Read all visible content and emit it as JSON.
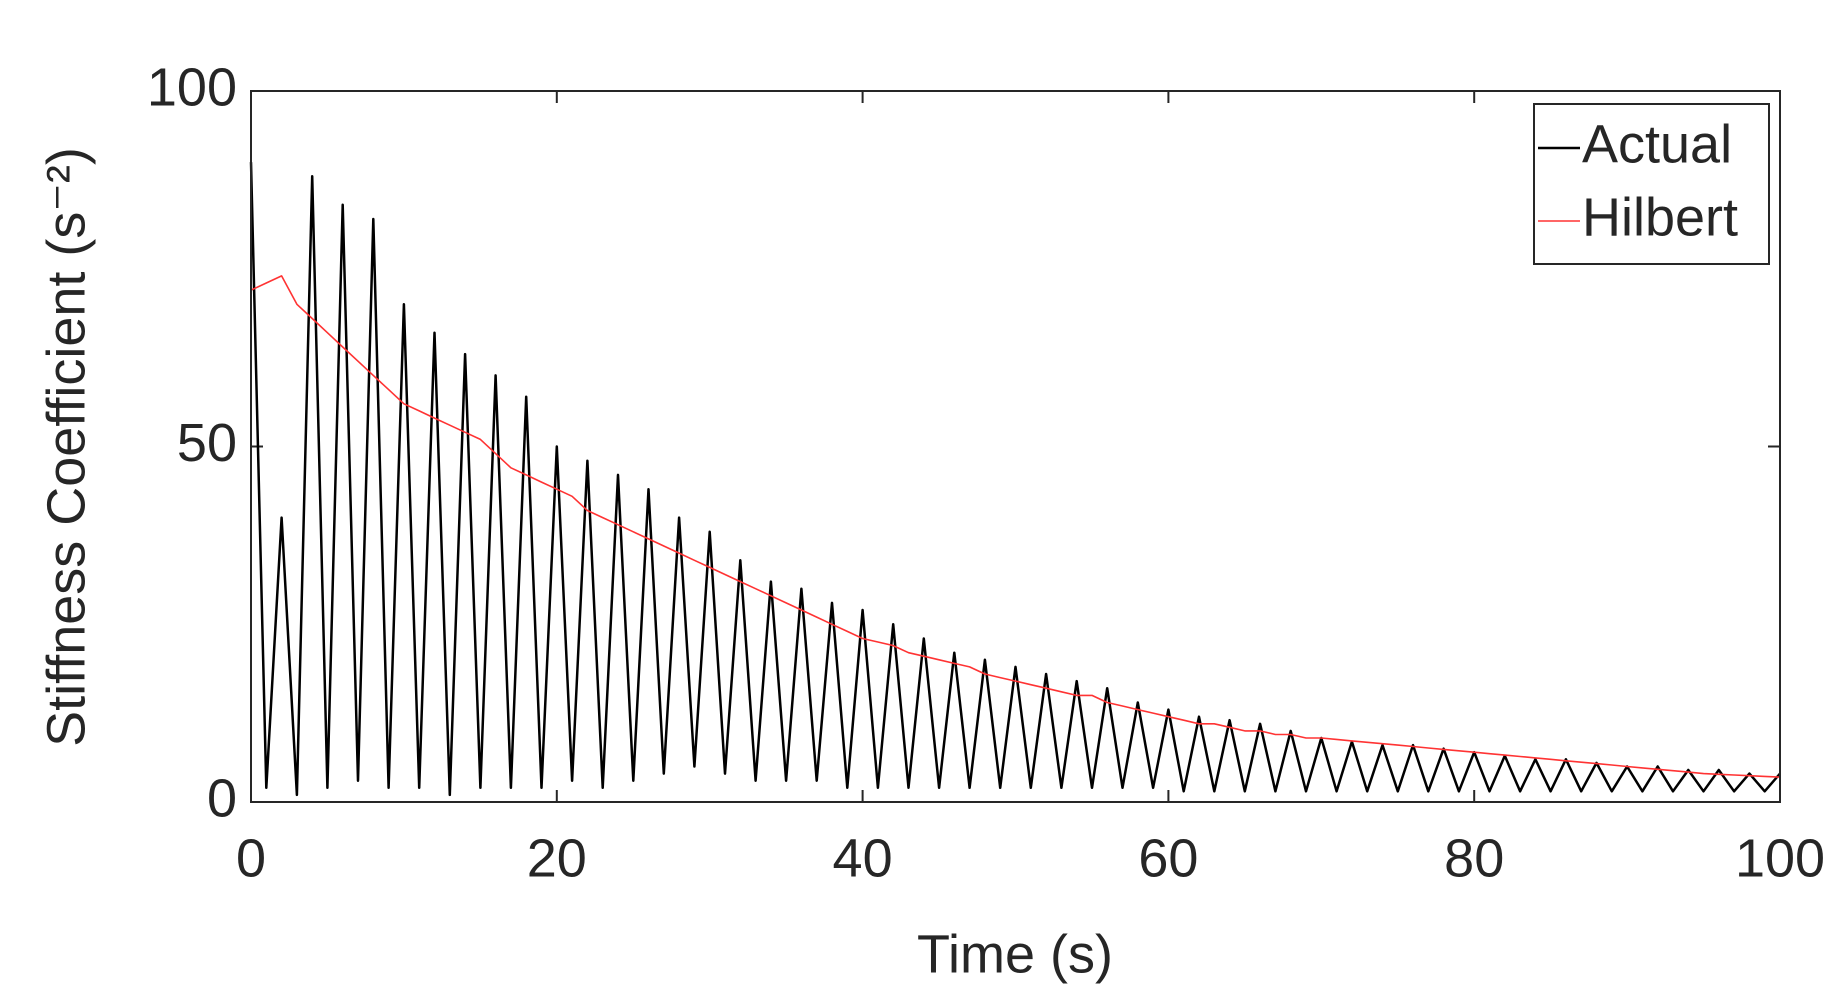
{
  "chart_data": {
    "type": "line",
    "x_label": "Time (s)",
    "y_label": "Stiffness Coefficient (s⁻²)",
    "x": [
      0,
      1,
      2,
      3,
      4,
      5,
      6,
      7,
      8,
      9,
      10,
      11,
      12,
      13,
      14,
      15,
      16,
      17,
      18,
      19,
      20,
      21,
      22,
      23,
      24,
      25,
      26,
      27,
      28,
      29,
      30,
      31,
      32,
      33,
      34,
      35,
      36,
      37,
      38,
      39,
      40,
      41,
      42,
      43,
      44,
      45,
      46,
      47,
      48,
      49,
      50,
      51,
      52,
      53,
      54,
      55,
      56,
      57,
      58,
      59,
      60,
      61,
      62,
      63,
      64,
      65,
      66,
      67,
      68,
      69,
      70,
      71,
      72,
      73,
      74,
      75,
      76,
      77,
      78,
      79,
      80,
      81,
      82,
      83,
      84,
      85,
      86,
      87,
      88,
      89,
      90,
      91,
      92,
      93,
      94,
      95,
      96,
      97,
      98,
      99,
      100
    ],
    "series": [
      {
        "name": "Actual",
        "color": "#000000",
        "values": [
          90,
          2,
          40,
          1,
          88,
          2,
          84,
          3,
          82,
          2,
          70,
          2,
          66,
          1,
          63,
          2,
          60,
          2,
          57,
          2,
          50,
          3,
          48,
          2,
          46,
          3,
          44,
          4,
          40,
          5,
          38,
          4,
          34,
          3,
          31,
          3,
          30,
          3,
          28,
          2,
          27,
          2,
          25,
          2,
          23,
          2,
          21,
          2,
          20,
          2,
          19,
          2,
          18,
          2,
          17,
          2,
          16,
          2,
          14,
          2,
          13,
          1.5,
          12,
          1.5,
          11.5,
          1.5,
          11,
          1.5,
          10,
          1.5,
          9,
          1.5,
          8.5,
          1.5,
          8,
          1.5,
          8,
          1.5,
          7.5,
          1.5,
          7,
          1.5,
          6.5,
          1.5,
          6,
          1.5,
          6,
          1.5,
          5.5,
          1.5,
          5,
          1.5,
          5,
          1.5,
          4.5,
          1.5,
          4.5,
          1.5,
          4,
          1.5,
          4
        ]
      },
      {
        "name": "Hilbert",
        "color": "#ff3333",
        "values": [
          72,
          73,
          74,
          70,
          68,
          66,
          64,
          62,
          60,
          58,
          56,
          55,
          54,
          53,
          52,
          51,
          49,
          47,
          46,
          45,
          44,
          43,
          41,
          40,
          39,
          38,
          37,
          36,
          35,
          34,
          33,
          32,
          31,
          30,
          29,
          28,
          27,
          26,
          25,
          24,
          23,
          22.5,
          22,
          21,
          20.5,
          20,
          19.5,
          19,
          18,
          17.5,
          17,
          16.5,
          16,
          15.5,
          15,
          15,
          14,
          13.5,
          13,
          12.5,
          12,
          11.5,
          11,
          11,
          10.5,
          10,
          10,
          9.5,
          9.5,
          9,
          9,
          8.8,
          8.6,
          8.4,
          8.2,
          8,
          7.8,
          7.6,
          7.4,
          7.2,
          7,
          6.8,
          6.6,
          6.4,
          6.2,
          6,
          5.8,
          5.6,
          5.4,
          5.2,
          5,
          4.8,
          4.6,
          4.4,
          4.2,
          4,
          3.9,
          3.8,
          3.7,
          3.6,
          3.5
        ]
      }
    ],
    "xlim": [
      0,
      100
    ],
    "xticks": [
      0,
      20,
      40,
      60,
      80,
      100
    ],
    "ylim": [
      0,
      100
    ],
    "yticks": [
      0,
      50,
      100
    ],
    "grid": false,
    "legend": "upper right"
  }
}
